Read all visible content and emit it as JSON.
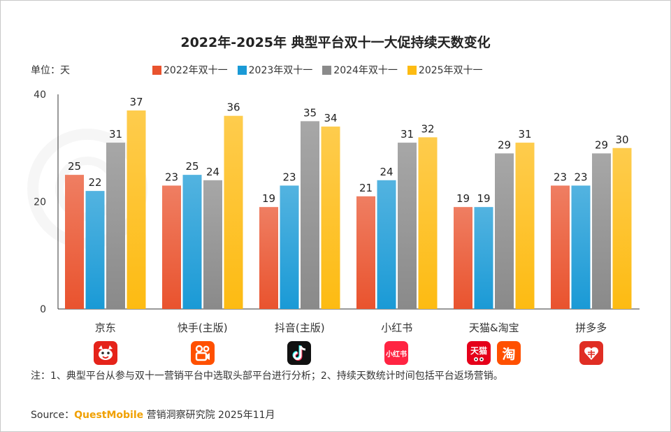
{
  "title": "2022年-2025年 典型平台双十一大促持续天数变化",
  "unit_label": "单位：天",
  "note": "注：1、典型平台从参与双十一营销平台中选取头部平台进行分析；2、持续天数统计时间包括平台返场营销。",
  "source": {
    "prefix": "Source：",
    "brand": "QuestMobile",
    "suffix": "营销洞察研究院 2025年11月"
  },
  "icons": {
    "jd": "jd-dog-logo",
    "kuaishou": "kuaishou-logo",
    "douyin": "douyin-logo",
    "xiaohongshu_text": "小红书",
    "tmall_text": "天猫",
    "taobao_text": "淘",
    "pinduoduo": "pinduoduo-logo"
  },
  "chart_data": {
    "type": "bar",
    "title": "2022年-2025年 典型平台双十一大促持续天数变化",
    "categories": [
      "京东",
      "快手(主版)",
      "抖音(主版)",
      "小红书",
      "天猫&淘宝",
      "拼多多"
    ],
    "series": [
      {
        "name": "2022年双十一",
        "color": "#e9532e",
        "values": [
          25,
          23,
          19,
          21,
          19,
          23
        ]
      },
      {
        "name": "2023年双十一",
        "color": "#1a9ad6",
        "values": [
          22,
          25,
          23,
          24,
          19,
          23
        ]
      },
      {
        "name": "2024年双十一",
        "color": "#8a8a8a",
        "values": [
          31,
          24,
          35,
          31,
          29,
          29
        ]
      },
      {
        "name": "2025年双十一",
        "color": "#fdbb12",
        "values": [
          37,
          36,
          34,
          32,
          31,
          30
        ]
      }
    ],
    "ylim": [
      0,
      40
    ],
    "yticks": [
      0,
      20,
      40
    ],
    "legend_position": "top",
    "grid": false
  }
}
